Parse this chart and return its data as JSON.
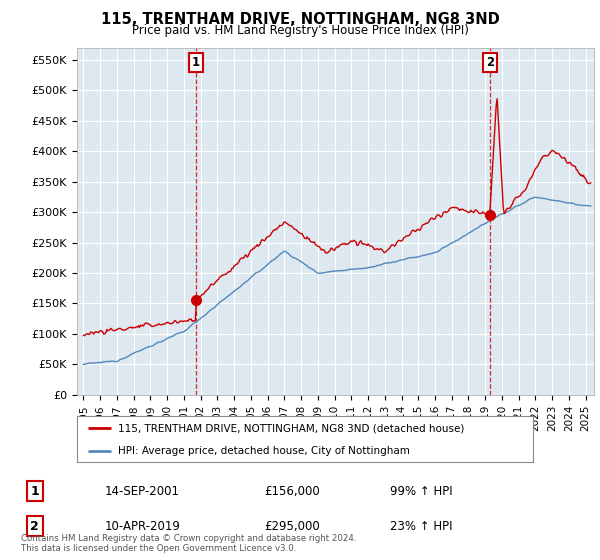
{
  "title": "115, TRENTHAM DRIVE, NOTTINGHAM, NG8 3ND",
  "subtitle": "Price paid vs. HM Land Registry's House Price Index (HPI)",
  "ylabel_ticks": [
    "£0",
    "£50K",
    "£100K",
    "£150K",
    "£200K",
    "£250K",
    "£300K",
    "£350K",
    "£400K",
    "£450K",
    "£500K",
    "£550K"
  ],
  "ytick_values": [
    0,
    50000,
    100000,
    150000,
    200000,
    250000,
    300000,
    350000,
    400000,
    450000,
    500000,
    550000
  ],
  "ylim": [
    0,
    570000
  ],
  "xlim_start": 1994.6,
  "xlim_end": 2025.5,
  "sale1_x": 2001.71,
  "sale1_y": 156000,
  "sale2_x": 2019.27,
  "sale2_y": 295000,
  "legend_line1": "115, TRENTHAM DRIVE, NOTTINGHAM, NG8 3ND (detached house)",
  "legend_line2": "HPI: Average price, detached house, City of Nottingham",
  "annotation1_label": "1",
  "annotation2_label": "2",
  "table_row1": [
    "1",
    "14-SEP-2001",
    "£156,000",
    "99% ↑ HPI"
  ],
  "table_row2": [
    "2",
    "10-APR-2019",
    "£295,000",
    "23% ↑ HPI"
  ],
  "footnote": "Contains HM Land Registry data © Crown copyright and database right 2024.\nThis data is licensed under the Open Government Licence v3.0.",
  "red_color": "#cc0000",
  "blue_color": "#5588bb",
  "chart_bg": "#dde8f0",
  "bg_color": "#ffffff",
  "grid_color": "#ffffff"
}
